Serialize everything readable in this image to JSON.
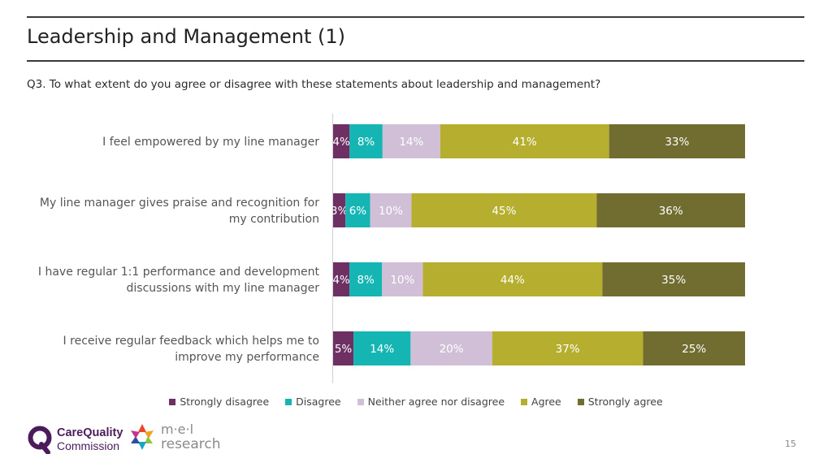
{
  "header": {
    "title": "Leadership and Management (1)",
    "question": "Q3. To what extent do you agree or disagree with these statements about leadership and management?"
  },
  "chart_data": {
    "type": "bar",
    "orientation": "horizontal",
    "stacked": true,
    "normalized": true,
    "categories": [
      [
        "I feel empowered by my line manager"
      ],
      [
        "My line manager gives praise and recognition for",
        "my contribution"
      ],
      [
        "I have regular 1:1 performance and development",
        "discussions with my line manager"
      ],
      [
        "I receive regular feedback which helps me to",
        "improve my performance"
      ]
    ],
    "series": [
      {
        "name": "Strongly disagree",
        "color": "#6e2f63",
        "values": [
          4,
          3,
          4,
          5
        ],
        "labels": [
          "4%",
          "3%",
          "4%",
          "5%"
        ]
      },
      {
        "name": "Disagree",
        "color": "#14b5b3",
        "values": [
          8,
          6,
          8,
          14
        ],
        "labels": [
          "8%",
          "6%",
          "8%",
          "14%"
        ]
      },
      {
        "name": "Neither agree nor disagree",
        "color": "#d1bfd8",
        "values": [
          14,
          10,
          10,
          20
        ],
        "labels": [
          "14%",
          "10%",
          "10%",
          "20%"
        ]
      },
      {
        "name": "Agree",
        "color": "#b5ae2f",
        "values": [
          41,
          45,
          44,
          37
        ],
        "labels": [
          "41%",
          "45%",
          "44%",
          "37%"
        ]
      },
      {
        "name": "Strongly agree",
        "color": "#716d30",
        "values": [
          33,
          36,
          35,
          25
        ],
        "labels": [
          "33%",
          "36%",
          "35%",
          "25%"
        ]
      }
    ],
    "legend_position": "bottom",
    "grid": false
  },
  "legend": [
    {
      "label": "Strongly disagree",
      "color": "#6e2f63"
    },
    {
      "label": "Disagree",
      "color": "#14b5b3"
    },
    {
      "label": "Neither agree nor disagree",
      "color": "#d1bfd8"
    },
    {
      "label": "Agree",
      "color": "#b5ae2f"
    },
    {
      "label": "Strongly agree",
      "color": "#716d30"
    }
  ],
  "footer": {
    "cqc_line1": "CareQuality",
    "cqc_line2": "Commission",
    "mel_line1": "m·e·l",
    "mel_line2": "research",
    "page_number": "15"
  }
}
